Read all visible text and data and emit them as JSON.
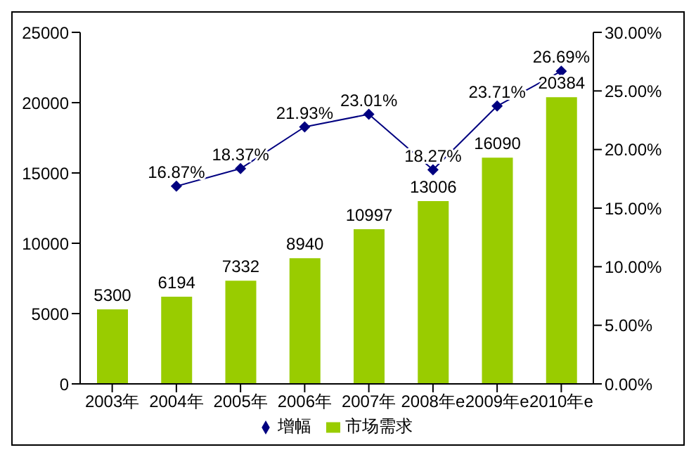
{
  "chart_data": {
    "type": "bar",
    "categories": [
      "2003年",
      "2004年",
      "2005年",
      "2006年",
      "2007年",
      "2008年e",
      "2009年e",
      "2010年e"
    ],
    "series": [
      {
        "name": "市场需求",
        "color": "#99cc00",
        "values": [
          5300,
          6194,
          7332,
          8940,
          10997,
          13006,
          16090,
          20384
        ],
        "value_labels": [
          "5300",
          "6194",
          "7332",
          "8940",
          "10997",
          "13006",
          "16090",
          "20384"
        ]
      },
      {
        "name": "增幅",
        "type": "line",
        "axis": "y2",
        "color": "#000080",
        "marker": "diamond",
        "values": [
          null,
          16.87,
          18.37,
          21.93,
          23.01,
          18.27,
          23.71,
          26.69
        ],
        "value_labels": [
          null,
          "16.87%",
          "18.37%",
          "21.93%",
          "23.01%",
          "18.27%",
          "23.71%",
          "26.69%"
        ]
      }
    ],
    "ylim": [
      0,
      25000
    ],
    "yticks": [
      0,
      5000,
      10000,
      15000,
      20000,
      25000
    ],
    "y2lim": [
      0,
      30
    ],
    "y2ticks": [
      {
        "value": 0,
        "label": "0.00%"
      },
      {
        "value": 5,
        "label": "5.00%"
      },
      {
        "value": 10,
        "label": "10.00%"
      },
      {
        "value": 15,
        "label": "15.00%"
      },
      {
        "value": 20,
        "label": "20.00%"
      },
      {
        "value": 25,
        "label": "25.00%"
      },
      {
        "value": 30,
        "label": "30.00%"
      }
    ],
    "grid": false,
    "legend": "bottom"
  }
}
